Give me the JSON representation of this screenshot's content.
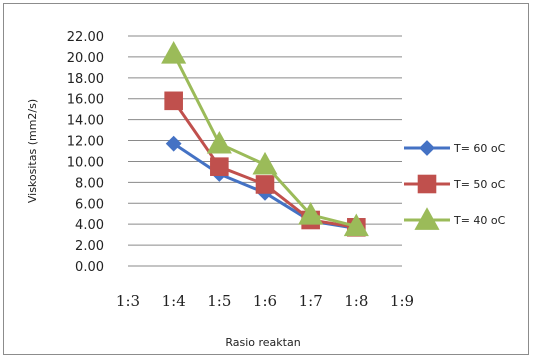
{
  "chart_data": {
    "type": "line",
    "xlabel": "Rasio reaktan",
    "ylabel": "Viskositas (mm2/s)",
    "categories": [
      "1:3",
      "1:4",
      "1:5",
      "1:6",
      "1:7",
      "1:8",
      "1:9"
    ],
    "yticks": [
      "0.00",
      "2.00",
      "4.00",
      "6.00",
      "8.00",
      "10.00",
      "12.00",
      "14.00",
      "16.00",
      "18.00",
      "20.00",
      "22.00"
    ],
    "ylim": [
      0,
      22
    ],
    "grid": true,
    "legend_position": "right",
    "series": [
      {
        "name": "T= 60 oC",
        "color": "#4472c4",
        "marker": "diamond",
        "x": [
          "1:4",
          "1:5",
          "1:6",
          "1:7",
          "1:8"
        ],
        "values": [
          11.7,
          8.8,
          7.0,
          4.3,
          3.6
        ]
      },
      {
        "name": "T= 50 oC",
        "color": "#c0504d",
        "marker": "square",
        "x": [
          "1:4",
          "1:5",
          "1:6",
          "1:7",
          "1:8"
        ],
        "values": [
          15.8,
          9.5,
          7.8,
          4.4,
          3.7
        ]
      },
      {
        "name": "T= 40 oC",
        "color": "#9bbb59",
        "marker": "triangle",
        "x": [
          "1:4",
          "1:5",
          "1:6",
          "1:7",
          "1:8"
        ],
        "values": [
          20.3,
          11.7,
          9.7,
          4.9,
          3.8
        ]
      }
    ]
  }
}
